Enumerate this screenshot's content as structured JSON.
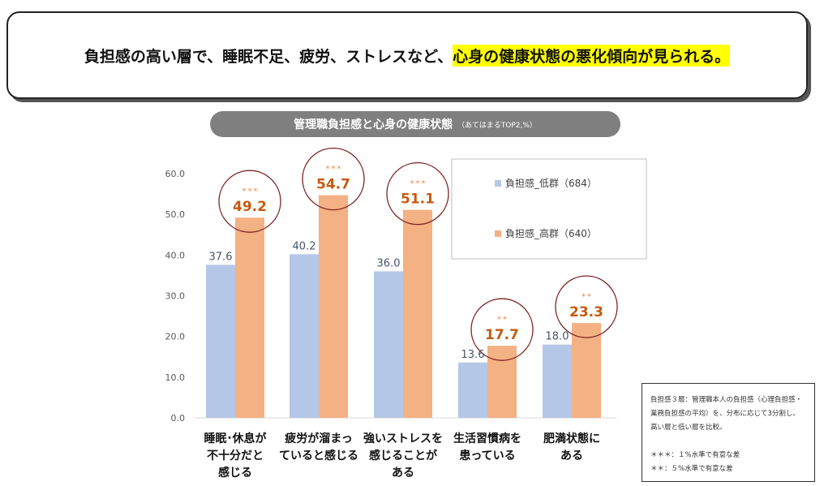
{
  "headline": {
    "text_plain": "負担感の高い層で、睡眠不足、疲労、ストレスなど、",
    "text_highlight": "心身の健康状態の悪化傾向が見られる。"
  },
  "chart_title": {
    "main": "管理職負担感と心身の健康状態",
    "sub": "（あてはまるTOP2,%）"
  },
  "note": {
    "line1": "負担感３層：管理職本人の負担感（心理負担感・業務負担感の平均）を、分布に応じて3分割し、高い層と低い層を比較。",
    "line2": "＊＊＊：１%水準で有意な差",
    "line3": "＊＊：５%水準で有意な差"
  },
  "chart_data": {
    "type": "bar",
    "categories": [
      [
        "睡眠･休息が",
        "不十分だと",
        "感じる"
      ],
      [
        "疲労が溜まっ",
        "ていると感じる"
      ],
      [
        "強いストレスを",
        "感じることが",
        "ある"
      ],
      [
        "生活習慣病を",
        "患っている"
      ],
      [
        "肥満状態に",
        "ある"
      ]
    ],
    "series": [
      {
        "name": "負担感_低群（684）",
        "color": "#b4c7e7",
        "values": [
          37.6,
          40.2,
          36.0,
          13.6,
          18.0
        ]
      },
      {
        "name": "負担感_高群（640）",
        "color": "#f4b183",
        "values": [
          49.2,
          54.7,
          51.1,
          17.7,
          23.3
        ]
      }
    ],
    "significance": [
      "＊＊＊",
      "＊＊＊",
      "＊＊＊",
      "＊＊",
      "＊＊"
    ],
    "yticks": [
      "0.0",
      "10.0",
      "20.0",
      "30.0",
      "40.0",
      "50.0",
      "60.0"
    ],
    "ylim": [
      0,
      60
    ],
    "legend": "top-right",
    "grid": false
  }
}
